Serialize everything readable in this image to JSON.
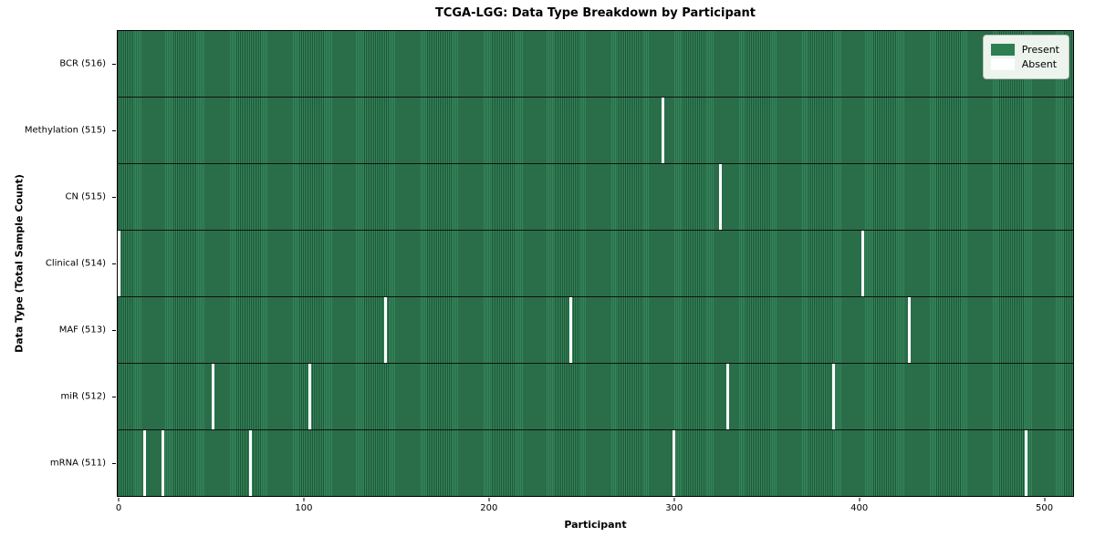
{
  "title": "TCGA-LGG: Data Type Breakdown by Participant",
  "xlabel": "Participant",
  "ylabel": "Data Type (Total Sample Count)",
  "legend": {
    "present_label": "Present",
    "absent_label": "Absent",
    "position": "upper right"
  },
  "colors": {
    "present": "#35855b",
    "present_edge": "#1d5737",
    "absent": "#ffffff",
    "row_divider": "#111111",
    "legend_bg": "#edf3ed",
    "legend_border": "#b9c2b9"
  },
  "chart_data": {
    "type": "heatmap",
    "title": "TCGA-LGG: Data Type Breakdown by Participant",
    "xlabel": "Participant",
    "ylabel": "Data Type (Total Sample Count)",
    "x_ticks": [
      0,
      100,
      200,
      300,
      400,
      500
    ],
    "x_range": [
      -0.5,
      515.5
    ],
    "total_participants": 516,
    "grid": false,
    "legend_position": "upper right",
    "rows": [
      {
        "label": "BCR (516)",
        "data_type": "BCR",
        "sample_count": 516,
        "absent_participants": []
      },
      {
        "label": "Methylation (515)",
        "data_type": "Methylation",
        "sample_count": 515,
        "absent_participants": [
          294
        ]
      },
      {
        "label": "CN (515)",
        "data_type": "CN",
        "sample_count": 515,
        "absent_participants": [
          325
        ]
      },
      {
        "label": "Clinical (514)",
        "data_type": "Clinical",
        "sample_count": 514,
        "absent_participants": [
          0,
          402
        ]
      },
      {
        "label": "MAF (513)",
        "data_type": "MAF",
        "sample_count": 513,
        "absent_participants": [
          144,
          244,
          427
        ]
      },
      {
        "label": "miR (512)",
        "data_type": "miR",
        "sample_count": 512,
        "absent_participants": [
          51,
          103,
          329,
          386
        ]
      },
      {
        "label": "mRNA (511)",
        "data_type": "mRNA",
        "sample_count": 511,
        "absent_participants": [
          14,
          24,
          71,
          300,
          490
        ]
      }
    ]
  }
}
